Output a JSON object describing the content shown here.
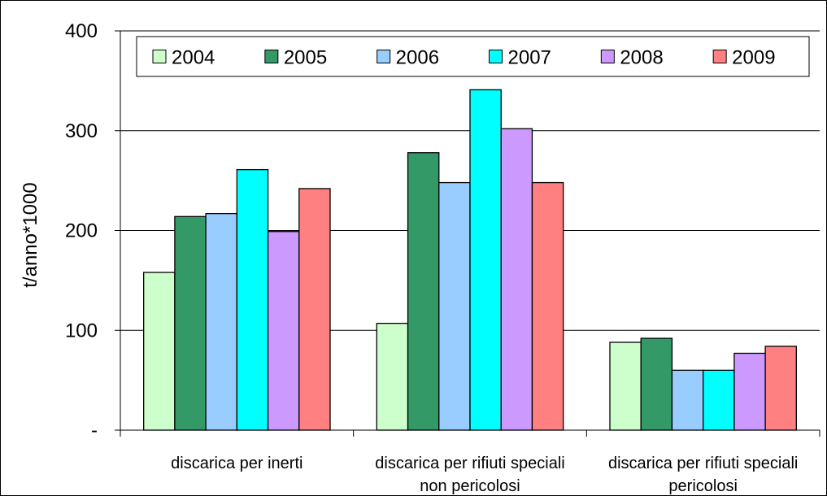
{
  "chart_data": {
    "type": "bar",
    "title": "",
    "xlabel": "",
    "ylabel": "t/anno*1000",
    "ylim": [
      0,
      400
    ],
    "yticks": [
      0,
      100,
      200,
      300,
      400
    ],
    "ytick_labels": [
      "-",
      "100",
      "200",
      "300",
      "400"
    ],
    "grid": true,
    "legend_position": "top",
    "categories": [
      [
        "discarica per inerti"
      ],
      [
        "discarica per rifiuti speciali",
        "non pericolosi"
      ],
      [
        "discarica per rifiuti speciali",
        "pericolosi"
      ]
    ],
    "series": [
      {
        "name": "2004",
        "color": "#ccffcc",
        "values": [
          158,
          107,
          88
        ]
      },
      {
        "name": "2005",
        "color": "#339966",
        "values": [
          214,
          278,
          92
        ]
      },
      {
        "name": "2006",
        "color": "#99ccff",
        "values": [
          217,
          248,
          60
        ]
      },
      {
        "name": "2007",
        "color": "#00ffff",
        "values": [
          261,
          341,
          60
        ]
      },
      {
        "name": "2008",
        "color": "#cc99ff",
        "values": [
          199,
          302,
          77
        ]
      },
      {
        "name": "2009",
        "color": "#ff8080",
        "values": [
          242,
          248,
          84
        ]
      }
    ]
  }
}
